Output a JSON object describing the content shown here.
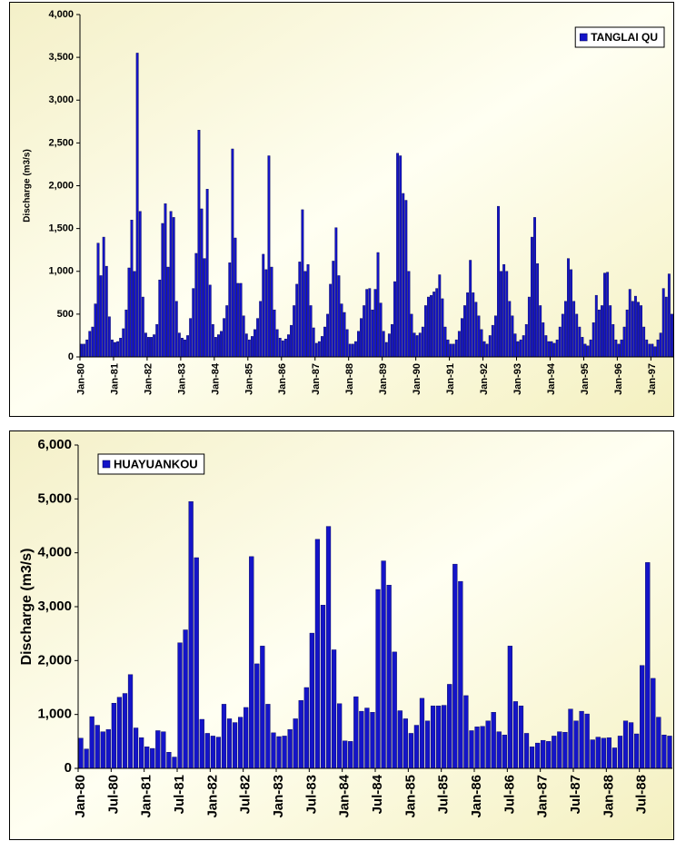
{
  "chart_data": [
    {
      "type": "bar",
      "y_label": "Discharge (m3/s)",
      "legend": "top-right",
      "categories": [
        "Jan-80",
        null,
        null,
        null,
        null,
        null,
        null,
        null,
        null,
        null,
        null,
        null,
        "Jan-81",
        null,
        null,
        null,
        null,
        null,
        null,
        null,
        null,
        null,
        null,
        null,
        "Jan-82",
        null,
        null,
        null,
        null,
        null,
        null,
        null,
        null,
        null,
        null,
        null,
        "Jan-83",
        null,
        null,
        null,
        null,
        null,
        null,
        null,
        null,
        null,
        null,
        null,
        "Jan-84",
        null,
        null,
        null,
        null,
        null,
        null,
        null,
        null,
        null,
        null,
        null,
        "Jan-85",
        null,
        null,
        null,
        null,
        null,
        null,
        null,
        null,
        null,
        null,
        null,
        "Jan-86",
        null,
        null,
        null,
        null,
        null,
        null,
        null,
        null,
        null,
        null,
        null,
        "Jan-87",
        null,
        null,
        null,
        null,
        null,
        null,
        null,
        null,
        null,
        null,
        null,
        "Jan-88",
        null,
        null,
        null,
        null,
        null,
        null,
        null,
        null,
        null,
        null,
        null,
        "Jan-89",
        null,
        null,
        null,
        null,
        null,
        null,
        null,
        null,
        null,
        null,
        null,
        "Jan-90",
        null,
        null,
        null,
        null,
        null,
        null,
        null,
        null,
        null,
        null,
        null,
        "Jan-91",
        null,
        null,
        null,
        null,
        null,
        null,
        null,
        null,
        null,
        null,
        null,
        "Jan-92",
        null,
        null,
        null,
        null,
        null,
        null,
        null,
        null,
        null,
        null,
        null,
        "Jan-93",
        null,
        null,
        null,
        null,
        null,
        null,
        null,
        null,
        null,
        null,
        null,
        "Jan-94",
        null,
        null,
        null,
        null,
        null,
        null,
        null,
        null,
        null,
        null,
        null,
        "Jan-95",
        null,
        null,
        null,
        null,
        null,
        null,
        null,
        null,
        null,
        null,
        null,
        "Jan-96",
        null,
        null,
        null,
        null,
        null,
        null,
        null,
        null,
        null,
        null,
        null,
        "Jan-97",
        null,
        null,
        null,
        null,
        null,
        null,
        null
      ],
      "series": [
        {
          "name": "TANGLAI QU",
          "color": "#1414c8",
          "values": [
            150,
            150,
            200,
            300,
            350,
            620,
            1330,
            950,
            1400,
            1060,
            470,
            200,
            170,
            180,
            220,
            330,
            550,
            1040,
            1600,
            1000,
            3550,
            1700,
            700,
            280,
            230,
            230,
            260,
            380,
            900,
            1560,
            1790,
            1050,
            1700,
            1630,
            650,
            280,
            220,
            200,
            250,
            450,
            800,
            1210,
            2650,
            1730,
            1150,
            1960,
            840,
            380,
            230,
            260,
            300,
            450,
            600,
            1100,
            2430,
            1390,
            860,
            860,
            480,
            270,
            200,
            240,
            320,
            450,
            650,
            1200,
            1020,
            2350,
            1050,
            550,
            320,
            220,
            190,
            210,
            260,
            370,
            600,
            850,
            1110,
            1720,
            1000,
            1080,
            600,
            340,
            160,
            180,
            240,
            350,
            500,
            850,
            1120,
            1510,
            950,
            620,
            520,
            320,
            150,
            150,
            180,
            300,
            450,
            600,
            790,
            800,
            550,
            790,
            1220,
            630,
            300,
            170,
            270,
            380,
            880,
            2380,
            2350,
            1910,
            1830,
            1000,
            500,
            280,
            250,
            280,
            350,
            600,
            700,
            720,
            760,
            800,
            960,
            680,
            350,
            200,
            150,
            150,
            200,
            300,
            450,
            600,
            750,
            1130,
            750,
            640,
            480,
            320,
            180,
            150,
            250,
            370,
            480,
            1760,
            1000,
            1080,
            1000,
            650,
            480,
            270,
            180,
            200,
            250,
            380,
            700,
            1400,
            1630,
            1090,
            600,
            400,
            250,
            180,
            180,
            160,
            200,
            350,
            500,
            650,
            1150,
            1020,
            650,
            500,
            350,
            230,
            150,
            130,
            200,
            400,
            720,
            550,
            600,
            980,
            990,
            600,
            380,
            200,
            150,
            200,
            350,
            550,
            790,
            650,
            710,
            640,
            600,
            350,
            200,
            150,
            150,
            120,
            200,
            280,
            800,
            700,
            970,
            500
          ]
        }
      ],
      "ylim": [
        0,
        4000
      ],
      "yticks": [
        0,
        500,
        {
          "value": 1000,
          "label": "1,000"
        },
        {
          "value": 1500,
          "label": "1,500"
        },
        {
          "value": 2000,
          "label": "2,000"
        },
        {
          "value": 2500,
          "label": "2,500"
        },
        {
          "value": 3000,
          "label": "3,000"
        },
        {
          "value": 3500,
          "label": "3,500"
        },
        {
          "value": 4000,
          "label": "4,000"
        }
      ]
    },
    {
      "type": "bar",
      "y_label": "Discharge (m3/s)",
      "legend": "top-left",
      "categories": [
        "Jan-80",
        null,
        null,
        null,
        null,
        null,
        "Jul-80",
        null,
        null,
        null,
        null,
        null,
        "Jan-81",
        null,
        null,
        null,
        null,
        null,
        "Jul-81",
        null,
        null,
        null,
        null,
        null,
        "Jan-82",
        null,
        null,
        null,
        null,
        null,
        "Jul-82",
        null,
        null,
        null,
        null,
        null,
        "Jan-83",
        null,
        null,
        null,
        null,
        null,
        "Jul-83",
        null,
        null,
        null,
        null,
        null,
        "Jan-84",
        null,
        null,
        null,
        null,
        null,
        "Jul-84",
        null,
        null,
        null,
        null,
        null,
        "Jan-85",
        null,
        null,
        null,
        null,
        null,
        "Jul-85",
        null,
        null,
        null,
        null,
        null,
        "Jan-86",
        null,
        null,
        null,
        null,
        null,
        "Jul-86",
        null,
        null,
        null,
        null,
        null,
        "Jan-87",
        null,
        null,
        null,
        null,
        null,
        "Jul-87",
        null,
        null,
        null,
        null,
        null,
        "Jan-88",
        null,
        null,
        null,
        null,
        null,
        "Jul-88",
        null,
        null,
        null,
        null,
        null
      ],
      "series": [
        {
          "name": "HUAYUANKOU",
          "color": "#1414c8",
          "values": [
            560,
            360,
            960,
            800,
            680,
            720,
            1210,
            1320,
            1390,
            1740,
            750,
            570,
            400,
            370,
            700,
            680,
            300,
            210,
            2330,
            2570,
            4950,
            3910,
            910,
            650,
            600,
            580,
            1190,
            920,
            850,
            950,
            1130,
            3930,
            1940,
            2270,
            1190,
            660,
            590,
            600,
            720,
            920,
            1260,
            1500,
            2510,
            4250,
            3030,
            4490,
            2200,
            1200,
            510,
            500,
            1330,
            1060,
            1120,
            1040,
            3320,
            3850,
            3400,
            2160,
            1070,
            920,
            650,
            800,
            1300,
            880,
            1160,
            1160,
            1170,
            1560,
            3790,
            3470,
            1350,
            700,
            770,
            780,
            880,
            1040,
            680,
            620,
            2270,
            1240,
            1160,
            650,
            400,
            470,
            520,
            500,
            600,
            680,
            670,
            1100,
            880,
            1060,
            1010,
            530,
            580,
            560,
            570,
            380,
            600,
            880,
            850,
            640,
            1910,
            3820,
            1670,
            950,
            620,
            600
          ]
        }
      ],
      "ylim": [
        0,
        6000
      ],
      "yticks": [
        0,
        {
          "value": 1000,
          "label": "1,000"
        },
        {
          "value": 2000,
          "label": "2,000"
        },
        {
          "value": 3000,
          "label": "3,000"
        },
        {
          "value": 4000,
          "label": "4,000"
        },
        {
          "value": 5000,
          "label": "5,000"
        },
        {
          "value": 6000,
          "label": "6,000"
        }
      ]
    }
  ]
}
